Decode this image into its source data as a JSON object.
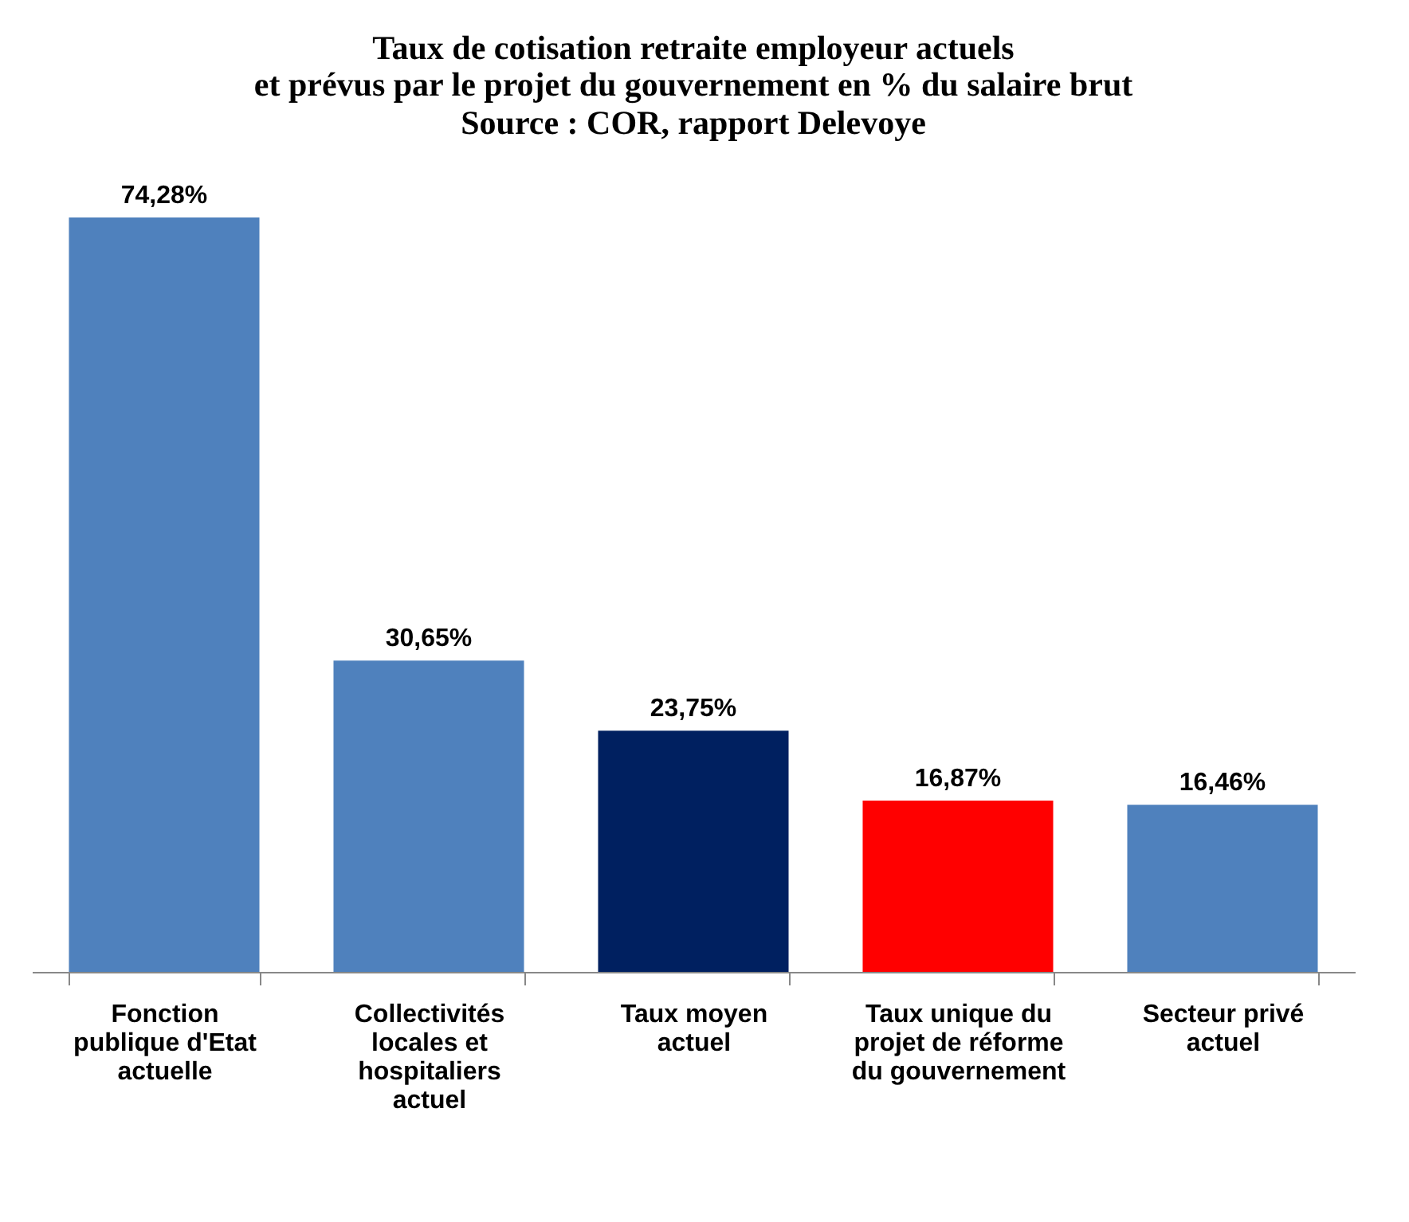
{
  "chart_data": {
    "type": "bar",
    "title": "Taux de cotisation retraite employeur actuels\net prévus par le projet du gouvernement en % du salaire brut",
    "annotations": [
      "Source : COR, rapport Delevoye"
    ],
    "categories": [
      "Fonction\npublique d'Etat\nactuelle",
      "Collectivités\nlocales et\nhospitaliers\nactuel",
      "Taux moyen\nactuel",
      "Taux unique du\nprojet de réforme\ndu gouvernement",
      "Secteur privé\nactuel"
    ],
    "values": [
      74.28,
      30.65,
      23.75,
      16.87,
      16.46
    ],
    "colors": [
      "#4f81bd",
      "#4f81bd",
      "#002060",
      "#ff0000",
      "#4f81bd"
    ],
    "value_labels": [
      "74,28%",
      "30,65%",
      "23,75%",
      "16,87%",
      "16,46%"
    ],
    "grid": false
  }
}
